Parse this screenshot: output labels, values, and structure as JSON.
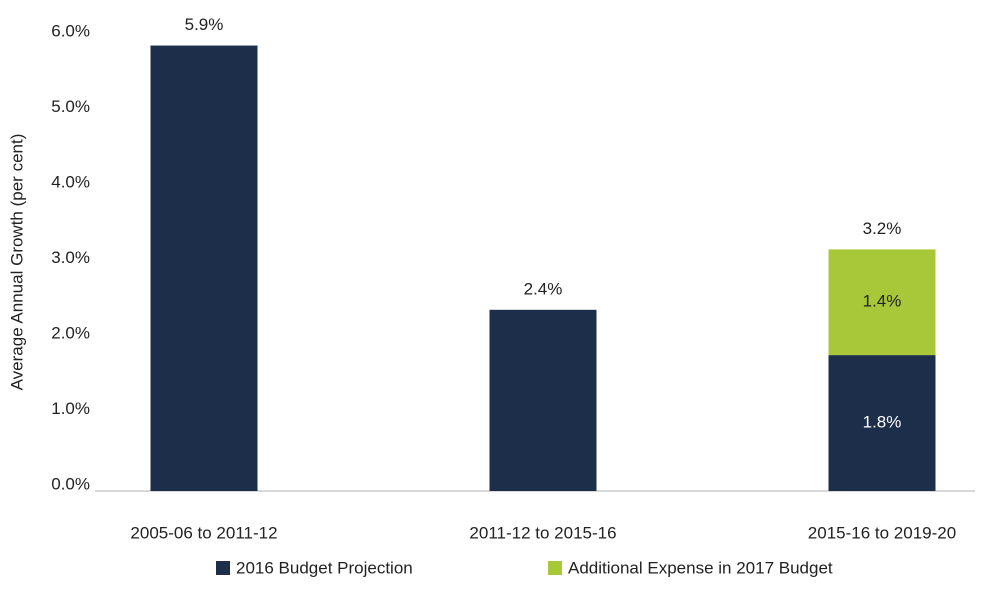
{
  "chart_data": {
    "type": "stacked_bar",
    "y_label": "Average Annual Growth (per cent)",
    "categories": [
      "2005-06 to 2011-12",
      "2011-12 to 2015-16",
      "2015-16 to 2019-20"
    ],
    "series": [
      {
        "name": "2016 Budget Projection",
        "color": "#1c2e4a",
        "values": [
          5.9,
          2.4,
          1.8
        ],
        "value_labels": [
          "5.9%",
          "2.4%",
          "1.8%"
        ]
      },
      {
        "name": "Additional Expense in 2017 Budget",
        "color": "#a8c83a",
        "values": [
          null,
          null,
          1.4
        ],
        "value_labels": [
          null,
          null,
          "1.4%"
        ]
      }
    ],
    "totals": [
      null,
      null,
      3.2
    ],
    "total_labels": [
      null,
      null,
      "3.2%"
    ],
    "ylim": [
      0,
      6
    ],
    "yticks": [
      {
        "value": 0,
        "label": "0.0%"
      },
      {
        "value": 1,
        "label": "1.0%"
      },
      {
        "value": 2,
        "label": "2.0%"
      },
      {
        "value": 3,
        "label": "3.0%"
      },
      {
        "value": 4,
        "label": "4.0%"
      },
      {
        "value": 5,
        "label": "5.0%"
      },
      {
        "value": 6,
        "label": "6.0%"
      }
    ],
    "grid": false,
    "legend": "bottom"
  }
}
